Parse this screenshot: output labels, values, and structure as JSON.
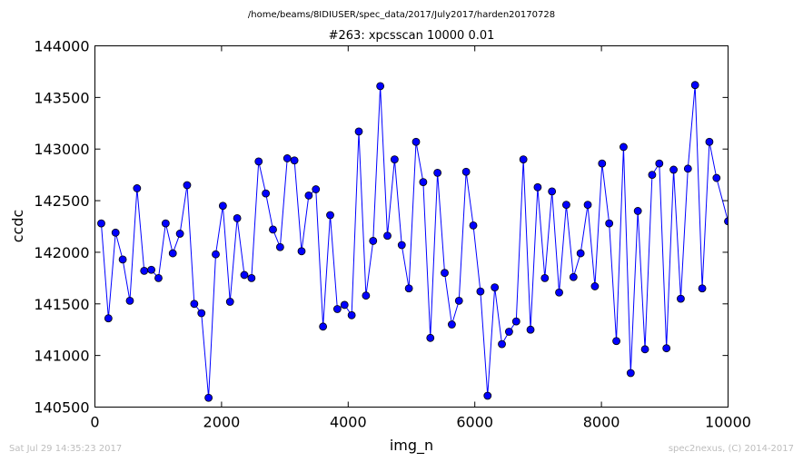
{
  "header": {
    "path": "/home/beams/8IDIUSER/spec_data/2017/July2017/harden20170728"
  },
  "footer": {
    "timestamp": "Sat Jul 29 14:35:23 2017",
    "credit": "spec2nexus, (C) 2014-2017"
  },
  "colors": {
    "line": "#0000ff",
    "marker_fill": "#0000ff",
    "marker_edge": "#000000"
  },
  "chart_data": {
    "type": "line",
    "title": "#263: xpcsscan 10000 0.01",
    "xlabel": "img_n",
    "ylabel": "ccdc",
    "xlim": [
      0,
      10000
    ],
    "ylim": [
      140500,
      144000
    ],
    "xticks": [
      0,
      2000,
      4000,
      6000,
      8000,
      10000
    ],
    "yticks": [
      140500,
      141000,
      141500,
      142000,
      142500,
      143000,
      143500,
      144000
    ],
    "grid": false,
    "series": [
      {
        "marker": "circle",
        "x": [
          100,
          213,
          326,
          439,
          552,
          665,
          778,
          891,
          1004,
          1117,
          1230,
          1343,
          1456,
          1569,
          1682,
          1795,
          1908,
          2021,
          2134,
          2247,
          2360,
          2473,
          2586,
          2699,
          2812,
          2925,
          3038,
          3151,
          3264,
          3377,
          3490,
          3603,
          3716,
          3829,
          3942,
          4055,
          4168,
          4281,
          4394,
          4507,
          4620,
          4733,
          4846,
          4959,
          5072,
          5185,
          5298,
          5411,
          5524,
          5637,
          5750,
          5863,
          5976,
          6089,
          6202,
          6315,
          6428,
          6541,
          6654,
          6767,
          6880,
          6993,
          7106,
          7219,
          7332,
          7445,
          7558,
          7671,
          7784,
          7897,
          8010,
          8123,
          8236,
          8349,
          8462,
          8575,
          8688,
          8801,
          8914,
          9027,
          9140,
          9253,
          9366,
          9479,
          9592,
          9705,
          9818,
          10000
        ],
        "y": [
          142280,
          141360,
          142190,
          141930,
          141530,
          142620,
          141820,
          141830,
          141750,
          142280,
          141990,
          142180,
          142650,
          141500,
          141410,
          140590,
          141980,
          142450,
          141520,
          142330,
          141780,
          141750,
          142880,
          142570,
          142220,
          142050,
          142910,
          142890,
          142010,
          142550,
          142610,
          141280,
          142360,
          141450,
          141490,
          141390,
          143170,
          141580,
          142110,
          143610,
          142160,
          142900,
          142070,
          141650,
          143070,
          142680,
          141170,
          142770,
          141800,
          141300,
          141530,
          142780,
          142260,
          141620,
          140610,
          141660,
          141110,
          141230,
          141330,
          142900,
          141250,
          142630,
          141750,
          142590,
          141610,
          142460,
          141760,
          141990,
          142460,
          141670,
          142860,
          142280,
          141140,
          143020,
          140830,
          142400,
          141060,
          142750,
          142860,
          141070,
          142800,
          141550,
          142810,
          143620,
          141650,
          143070,
          142720,
          142300
        ]
      }
    ]
  }
}
